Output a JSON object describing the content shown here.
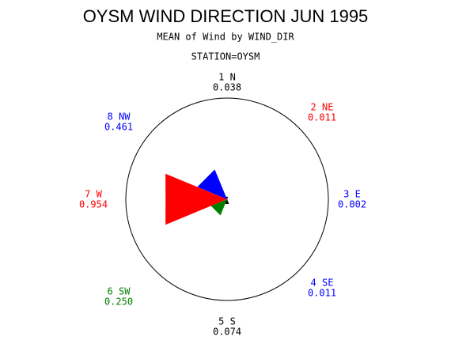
{
  "chart_data": {
    "type": "star",
    "title": "OYSM WIND DIRECTION JUN 1995",
    "subtitle": "MEAN of Wind by WIND_DIR",
    "station": "STATION=OYSM",
    "categories": [
      "1 N",
      "2 NE",
      "3 E",
      "4 SE",
      "5 S",
      "6 SW",
      "7 W",
      "8 NW"
    ],
    "values": [
      0.038,
      0.011,
      0.002,
      0.011,
      0.074,
      0.25,
      0.954,
      0.461
    ],
    "value_labels": [
      "0.038",
      "0.011",
      "0.002",
      "0.011",
      "0.074",
      "0.250",
      "0.954",
      "0.461"
    ],
    "colors": [
      "#000000",
      "#ff0000",
      "#0000ff",
      "#0000ff",
      "#000000",
      "#008000",
      "#ff0000",
      "#0000ff"
    ],
    "rlim": [
      0,
      1.45
    ]
  }
}
